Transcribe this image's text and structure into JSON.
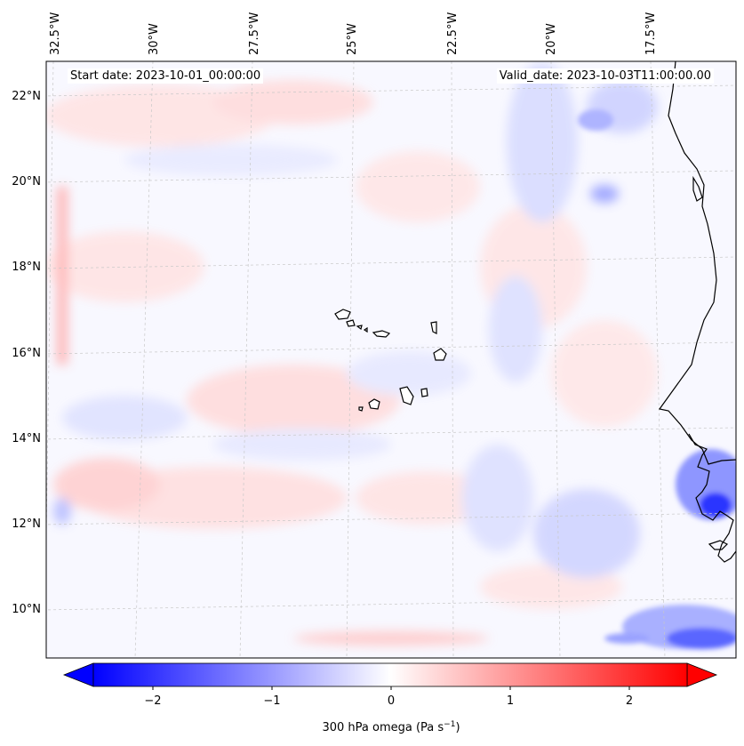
{
  "map": {
    "start_date": "Start date: 2023-10-01_00:00:00",
    "valid_date": "Valid_date: 2023-10-03T11:00:00.00",
    "lon_labels": [
      "32.5°W",
      "30°W",
      "27.5°W",
      "25°W",
      "22.5°W",
      "20°W",
      "17.5°W"
    ],
    "lat_labels": [
      "22°N",
      "20°N",
      "18°N",
      "16°N",
      "14°N",
      "12°N",
      "10°N"
    ],
    "colorbar": {
      "ticks": [
        "−2",
        "−1",
        "0",
        "1",
        "2"
      ],
      "label_main": "300 hPa omega (Pa s",
      "label_exp": "−1",
      "label_close": ")",
      "colormap": "bwr",
      "range": [
        -2.7,
        2.7
      ],
      "colors": {
        "negative": "#0000ff",
        "zero": "#ffffff",
        "positive": "#ff0000"
      }
    },
    "field_colors": {
      "light_blue": "#c8ccff",
      "mid_blue": "#8e96ff",
      "strong_blue": "#2a36ff",
      "light_red": "#ffd8d8",
      "mid_red": "#ffb5b5"
    },
    "islands": "Cape Verde islands",
    "coastline": "West African coast"
  }
}
